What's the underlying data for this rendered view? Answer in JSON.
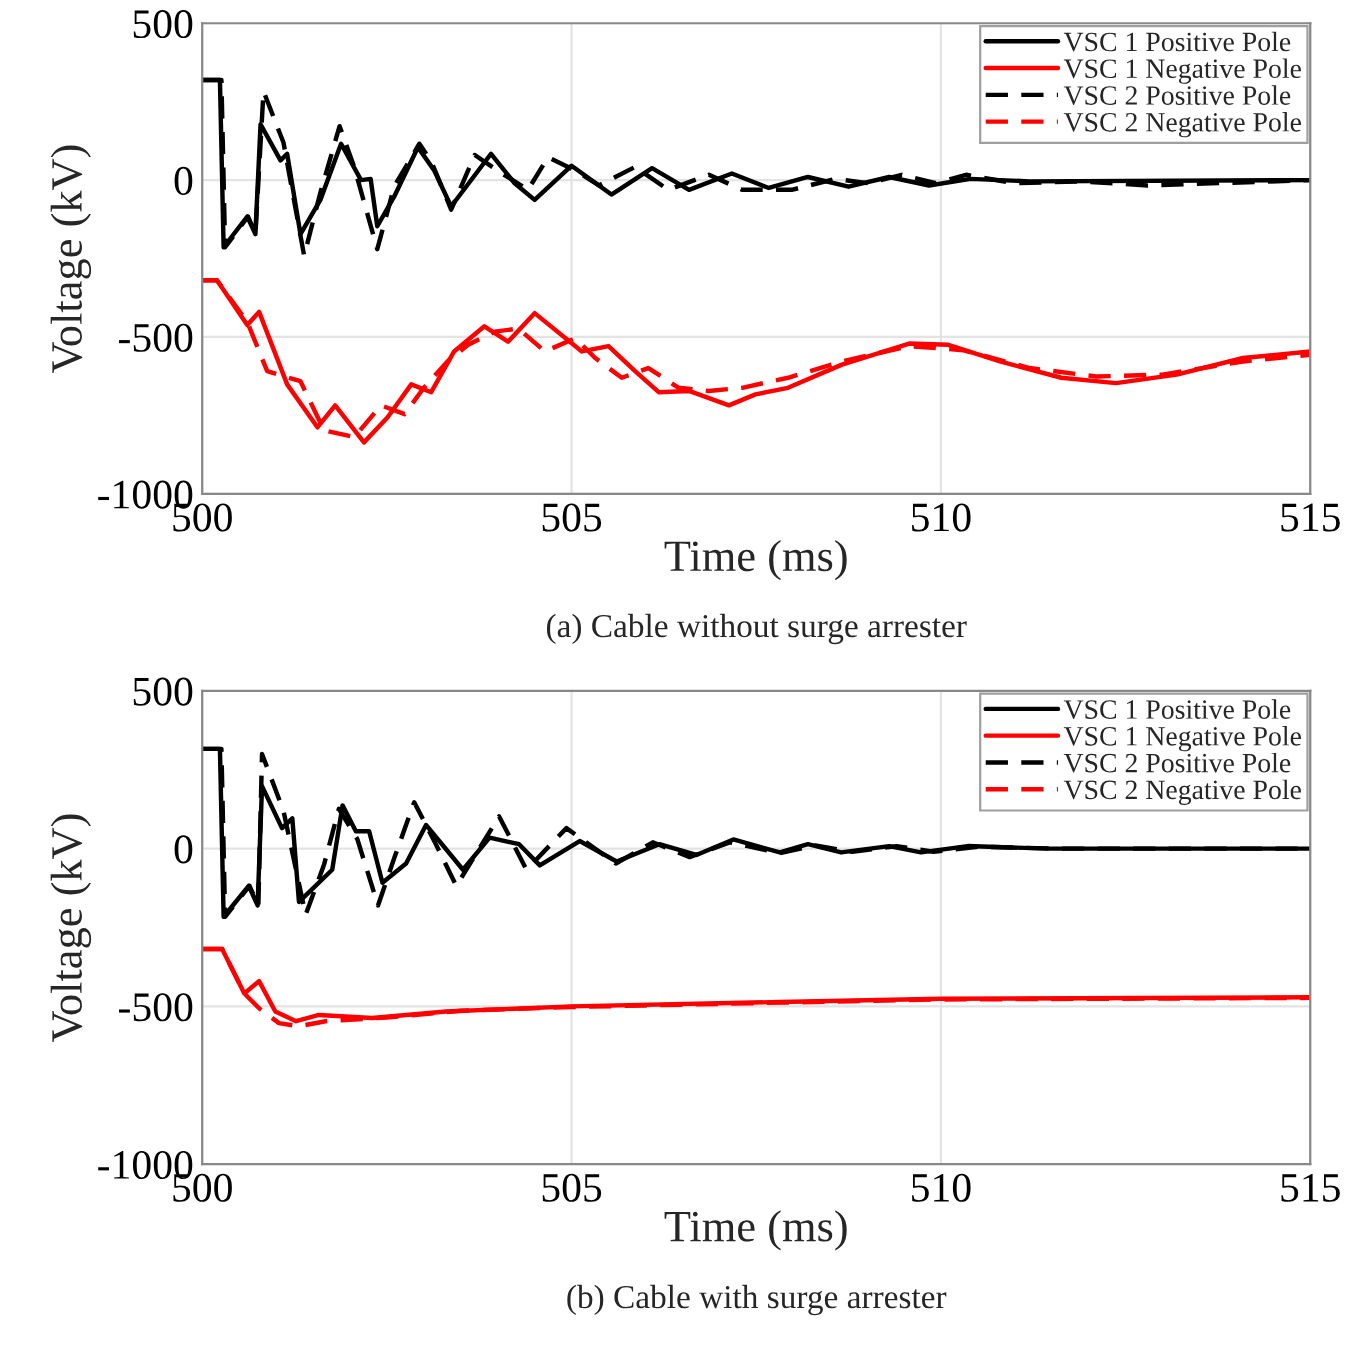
{
  "chart_data": [
    {
      "type": "line",
      "title": "(a) Cable without surge arrester",
      "xlabel": "Time (ms)",
      "ylabel": "Voltage (kV)",
      "xlim": [
        500,
        515
      ],
      "xticks": [
        500,
        505,
        510,
        515
      ],
      "ylim": [
        -1000,
        500
      ],
      "yticks": [
        -1000,
        -500,
        0,
        500
      ],
      "grid": true,
      "legend": "top right",
      "series": [
        {
          "name": "VSC 1 Positive Pole",
          "color": "#000000",
          "line_style": "solid",
          "x": [
            500,
            500.24,
            500.29,
            500.61,
            500.72,
            500.79,
            501.06,
            501.15,
            501.33,
            501.6,
            501.88,
            502.15,
            502.28,
            502.37,
            502.6,
            502.92,
            503.14,
            503.37,
            503.91,
            504.23,
            504.5,
            505.0,
            505.54,
            506.09,
            506.59,
            507.17,
            507.67,
            508.2,
            508.75,
            509.3,
            509.84,
            510.4,
            511.2,
            515
          ],
          "values": [
            319,
            319,
            -214,
            -116,
            -172,
            178,
            63,
            84,
            -172,
            -63,
            116,
            0,
            4,
            -147,
            -52,
            105,
            31,
            -84,
            84,
            -10,
            -63,
            46,
            -46,
            38,
            -31,
            21,
            -25,
            10,
            -21,
            10,
            -17,
            4,
            -4,
            0
          ]
        },
        {
          "name": "VSC 1 Negative Pole",
          "color": "#ff0000",
          "line_style": "solid",
          "x": [
            500,
            500.2,
            500.61,
            500.77,
            501.15,
            501.56,
            501.8,
            502.19,
            502.51,
            502.83,
            503.1,
            503.41,
            503.82,
            504.14,
            504.5,
            505.14,
            505.5,
            505.86,
            506.18,
            506.59,
            507.13,
            507.49,
            507.93,
            508.66,
            509.57,
            510.1,
            510.8,
            511.63,
            512.37,
            513.19,
            514.09,
            515
          ],
          "values": [
            -319,
            -319,
            -462,
            -420,
            -651,
            -788,
            -718,
            -836,
            -756,
            -651,
            -676,
            -546,
            -466,
            -515,
            -424,
            -546,
            -529,
            -609,
            -676,
            -672,
            -718,
            -683,
            -662,
            -588,
            -521,
            -525,
            -578,
            -630,
            -647,
            -620,
            -567,
            -546
          ]
        },
        {
          "name": "VSC 2 Positive Pole",
          "color": "#000000",
          "line_style": "dashed",
          "x": [
            500,
            500.26,
            500.31,
            500.62,
            500.72,
            500.83,
            501.1,
            501.38,
            501.6,
            501.86,
            502.06,
            502.37,
            502.6,
            502.94,
            503.1,
            503.37,
            503.69,
            504.0,
            504.41,
            504.68,
            505.05,
            505.37,
            505.86,
            506.31,
            506.86,
            507.31,
            507.98,
            508.57,
            509.02,
            509.47,
            509.93,
            510.34,
            511.0,
            511.9,
            512.8,
            515
          ],
          "values": [
            319,
            319,
            -214,
            -116,
            -172,
            283,
            120,
            -241,
            -40,
            172,
            40,
            -220,
            -20,
            116,
            60,
            -94,
            80,
            30,
            -31,
            73,
            31,
            -17,
            42,
            -31,
            17,
            -31,
            -31,
            4,
            -10,
            17,
            -10,
            17,
            -10,
            -4,
            -17,
            0
          ]
        },
        {
          "name": "VSC 2 Negative Pole",
          "color": "#ff0000",
          "line_style": "dashed",
          "x": [
            500,
            500.2,
            500.61,
            500.88,
            501.33,
            501.65,
            502.06,
            502.42,
            502.74,
            503.0,
            503.32,
            503.6,
            503.96,
            504.28,
            504.64,
            505.05,
            505.32,
            505.68,
            506.04,
            506.45,
            506.86,
            507.31,
            507.93,
            508.66,
            509.57,
            510.3,
            511.2,
            512.1,
            513.0,
            514.09,
            515
          ],
          "values": [
            -319,
            -319,
            -452,
            -609,
            -641,
            -798,
            -819,
            -718,
            -746,
            -662,
            -578,
            -525,
            -483,
            -473,
            -546,
            -504,
            -567,
            -630,
            -599,
            -662,
            -672,
            -662,
            -630,
            -578,
            -529,
            -542,
            -599,
            -626,
            -620,
            -578,
            -557
          ]
        }
      ]
    },
    {
      "type": "line",
      "title": "(b) Cable with surge arrester",
      "xlabel": "Time (ms)",
      "ylabel": "Voltage (kV)",
      "xlim": [
        500,
        515
      ],
      "xticks": [
        500,
        505,
        510,
        515
      ],
      "ylim": [
        -1000,
        500
      ],
      "yticks": [
        -1000,
        -500,
        0,
        500
      ],
      "grid": true,
      "legend": "top right",
      "series": [
        {
          "name": "VSC 1 Positive Pole",
          "color": "#000000",
          "line_style": "solid",
          "x": [
            500,
            500.24,
            500.29,
            500.63,
            500.75,
            500.81,
            501.08,
            501.22,
            501.31,
            501.76,
            501.9,
            502.08,
            502.26,
            502.44,
            502.76,
            503.03,
            503.53,
            503.89,
            504.29,
            504.57,
            505.11,
            505.61,
            506.19,
            506.69,
            507.19,
            507.82,
            508.2,
            508.65,
            509.3,
            509.73,
            510.36,
            511.45,
            515
          ],
          "values": [
            316,
            316,
            -216,
            -118,
            -180,
            198,
            65,
            96,
            -169,
            -67,
            137,
            55,
            55,
            -108,
            -47,
            75,
            -67,
            35,
            14,
            -53,
            24,
            -41,
            14,
            -20,
            29,
            -12,
            14,
            -12,
            8,
            -12,
            8,
            0,
            0
          ]
        },
        {
          "name": "VSC 1 Negative Pole",
          "color": "#ff0000",
          "line_style": "solid",
          "x": [
            500,
            500.27,
            500.57,
            500.77,
            500.99,
            501.27,
            501.58,
            502.3,
            503.3,
            505,
            507.82,
            510,
            515
          ],
          "values": [
            -318,
            -318,
            -459,
            -420,
            -516,
            -547,
            -527,
            -537,
            -516,
            -500,
            -486,
            -476,
            -471
          ]
        },
        {
          "name": "VSC 2 Positive Pole",
          "color": "#000000",
          "line_style": "dashed",
          "x": [
            500,
            500.26,
            500.31,
            500.64,
            500.76,
            500.81,
            501.1,
            501.4,
            501.65,
            501.85,
            502.1,
            502.38,
            502.6,
            502.87,
            503.15,
            503.44,
            504.02,
            504.39,
            504.93,
            505.6,
            506.1,
            506.6,
            507.14,
            507.82,
            508.3,
            508.8,
            509.4,
            509.9,
            510.5,
            511.6,
            515
          ],
          "values": [
            316,
            316,
            -216,
            -118,
            -180,
            300,
            120,
            -210,
            -50,
            126,
            30,
            -180,
            -30,
            147,
            20,
            -118,
            102,
            -67,
            65,
            -47,
            20,
            -27,
            20,
            -14,
            10,
            -10,
            8,
            -10,
            6,
            0,
            0
          ]
        },
        {
          "name": "VSC 2 Negative Pole",
          "color": "#ff0000",
          "line_style": "dashed",
          "x": [
            500,
            500.27,
            500.57,
            500.77,
            501.04,
            501.31,
            501.67,
            502.5,
            503.5,
            505,
            507.82,
            510,
            515
          ],
          "values": [
            -318,
            -318,
            -459,
            -506,
            -553,
            -563,
            -547,
            -535,
            -514,
            -502,
            -488,
            -478,
            -473
          ]
        }
      ]
    }
  ]
}
